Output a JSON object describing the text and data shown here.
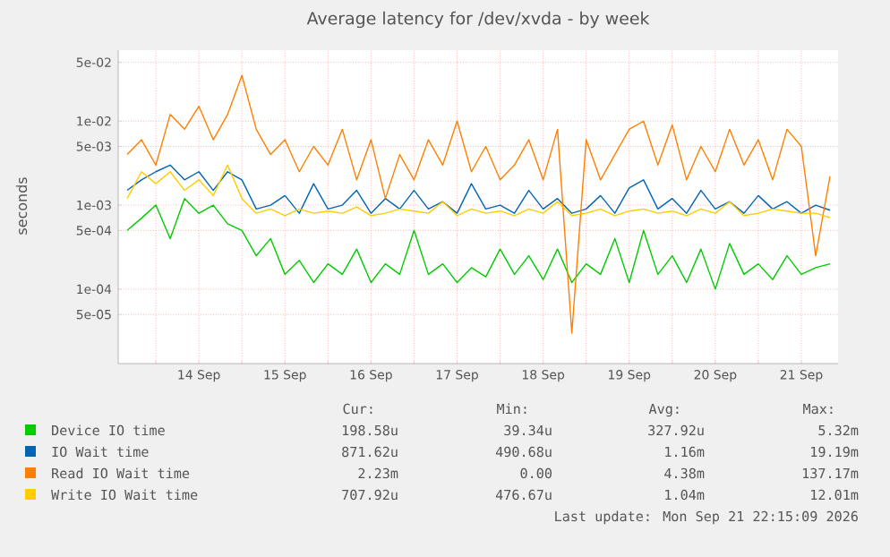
{
  "chart_data": {
    "type": "line",
    "title": "Average latency for /dev/xvda - by week",
    "ylabel": "seconds",
    "log": true,
    "grid": true,
    "legend": "bottom",
    "xlim": [
      "2026-09-13T13:30",
      "2026-09-21T22:15"
    ],
    "ylim": [
      1.3e-05,
      0.07
    ],
    "yticks": [
      {
        "value": 5e-05,
        "label": "5e-05"
      },
      {
        "value": 0.0001,
        "label": "1e-04"
      },
      {
        "value": 0.0005,
        "label": "5e-04"
      },
      {
        "value": 0.001,
        "label": "1e-03"
      },
      {
        "value": 0.005,
        "label": "5e-03"
      },
      {
        "value": 0.01,
        "label": "1e-02"
      },
      {
        "value": 0.05,
        "label": "5e-02"
      }
    ],
    "xticks": [
      {
        "value": "2026-09-14T00:00",
        "label": null
      },
      {
        "value": "2026-09-14T12:00",
        "label": "14 Sep"
      },
      {
        "value": "2026-09-15T00:00",
        "label": null
      },
      {
        "value": "2026-09-15T12:00",
        "label": "15 Sep"
      },
      {
        "value": "2026-09-16T00:00",
        "label": null
      },
      {
        "value": "2026-09-16T12:00",
        "label": "16 Sep"
      },
      {
        "value": "2026-09-17T00:00",
        "label": null
      },
      {
        "value": "2026-09-17T12:00",
        "label": "17 Sep"
      },
      {
        "value": "2026-09-18T00:00",
        "label": null
      },
      {
        "value": "2026-09-18T12:00",
        "label": "18 Sep"
      },
      {
        "value": "2026-09-19T00:00",
        "label": null
      },
      {
        "value": "2026-09-19T12:00",
        "label": "19 Sep"
      },
      {
        "value": "2026-09-20T00:00",
        "label": null
      },
      {
        "value": "2026-09-20T12:00",
        "label": "20 Sep"
      },
      {
        "value": "2026-09-21T00:00",
        "label": null
      },
      {
        "value": "2026-09-21T12:00",
        "label": "21 Sep"
      }
    ],
    "x": [
      "2026-09-13T16:00",
      "2026-09-13T20:00",
      "2026-09-14T00:00",
      "2026-09-14T04:00",
      "2026-09-14T08:00",
      "2026-09-14T12:00",
      "2026-09-14T16:00",
      "2026-09-14T20:00",
      "2026-09-15T00:00",
      "2026-09-15T04:00",
      "2026-09-15T08:00",
      "2026-09-15T12:00",
      "2026-09-15T16:00",
      "2026-09-15T20:00",
      "2026-09-16T00:00",
      "2026-09-16T04:00",
      "2026-09-16T08:00",
      "2026-09-16T12:00",
      "2026-09-16T16:00",
      "2026-09-16T20:00",
      "2026-09-17T00:00",
      "2026-09-17T04:00",
      "2026-09-17T08:00",
      "2026-09-17T12:00",
      "2026-09-17T16:00",
      "2026-09-17T20:00",
      "2026-09-18T00:00",
      "2026-09-18T04:00",
      "2026-09-18T08:00",
      "2026-09-18T12:00",
      "2026-09-18T16:00",
      "2026-09-18T20:00",
      "2026-09-19T00:00",
      "2026-09-19T04:00",
      "2026-09-19T08:00",
      "2026-09-19T12:00",
      "2026-09-19T16:00",
      "2026-09-19T20:00",
      "2026-09-20T00:00",
      "2026-09-20T04:00",
      "2026-09-20T08:00",
      "2026-09-20T12:00",
      "2026-09-20T16:00",
      "2026-09-20T20:00",
      "2026-09-21T00:00",
      "2026-09-21T04:00",
      "2026-09-21T08:00",
      "2026-09-21T12:00",
      "2026-09-21T16:00",
      "2026-09-21T20:00"
    ],
    "series": [
      {
        "name": "Device IO time",
        "color": "#00cc00",
        "values": [
          0.0005,
          0.0007,
          0.001,
          0.0004,
          0.0012,
          0.0008,
          0.001,
          0.0006,
          0.0005,
          0.00025,
          0.0004,
          0.00015,
          0.00022,
          0.00012,
          0.0002,
          0.00015,
          0.0003,
          0.00012,
          0.0002,
          0.00015,
          0.0005,
          0.00015,
          0.0002,
          0.00012,
          0.00018,
          0.00014,
          0.0003,
          0.00015,
          0.00025,
          0.00013,
          0.0003,
          0.00012,
          0.0002,
          0.00015,
          0.0004,
          0.00012,
          0.0005,
          0.00015,
          0.00025,
          0.00012,
          0.0003,
          0.0001,
          0.00035,
          0.00015,
          0.0002,
          0.00013,
          0.00025,
          0.00015,
          0.00018,
          0.0002
        ]
      },
      {
        "name": "IO Wait time",
        "color": "#0066b3",
        "values": [
          0.0015,
          0.002,
          0.0025,
          0.003,
          0.002,
          0.0025,
          0.0015,
          0.0025,
          0.002,
          0.0009,
          0.001,
          0.0013,
          0.0008,
          0.0018,
          0.0009,
          0.001,
          0.0015,
          0.0008,
          0.0012,
          0.0009,
          0.0015,
          0.0009,
          0.0011,
          0.0008,
          0.0018,
          0.0009,
          0.001,
          0.0008,
          0.0015,
          0.0009,
          0.0012,
          0.0008,
          0.0009,
          0.0013,
          0.0008,
          0.0016,
          0.002,
          0.0009,
          0.0012,
          0.0008,
          0.0015,
          0.0009,
          0.0011,
          0.0008,
          0.0013,
          0.0009,
          0.0011,
          0.0008,
          0.001,
          0.00087
        ]
      },
      {
        "name": "Read IO Wait time",
        "color": "#ff8000",
        "values": [
          0.004,
          0.006,
          0.003,
          0.012,
          0.008,
          0.015,
          0.006,
          0.012,
          0.035,
          0.008,
          0.004,
          0.006,
          0.0025,
          0.005,
          0.003,
          0.008,
          0.002,
          0.006,
          0.0012,
          0.004,
          0.002,
          0.006,
          0.003,
          0.01,
          0.0025,
          0.005,
          0.002,
          0.003,
          0.006,
          0.002,
          0.008,
          3e-05,
          0.006,
          0.002,
          0.004,
          0.008,
          0.01,
          0.003,
          0.009,
          0.002,
          0.005,
          0.0025,
          0.008,
          0.003,
          0.006,
          0.002,
          0.008,
          0.005,
          0.00025,
          0.0022
        ]
      },
      {
        "name": "Write IO Wait time",
        "color": "#ffcc00",
        "values": [
          0.0012,
          0.0025,
          0.0018,
          0.0025,
          0.0015,
          0.002,
          0.0013,
          0.003,
          0.0012,
          0.0008,
          0.0009,
          0.00075,
          0.0009,
          0.0008,
          0.00085,
          0.0008,
          0.00095,
          0.00075,
          0.0008,
          0.0009,
          0.00085,
          0.0008,
          0.0011,
          0.00075,
          0.0009,
          0.0008,
          0.00085,
          0.00075,
          0.0009,
          0.0008,
          0.0011,
          0.00075,
          0.0008,
          0.0009,
          0.00075,
          0.00085,
          0.0009,
          0.0008,
          0.00085,
          0.00075,
          0.0009,
          0.0008,
          0.0011,
          0.00075,
          0.0008,
          0.0009,
          0.00085,
          0.0008,
          0.0008,
          0.00071
        ]
      }
    ],
    "annotations": [
      "Cur:",
      "Min:",
      "Avg:",
      "Max:",
      "198.58u",
      "39.34u",
      "327.92u",
      "5.32m",
      "871.62u",
      "490.68u",
      "1.16m",
      "19.19m",
      "2.23m",
      "0.00",
      "4.38m",
      "137.17m",
      "707.92u",
      "476.67u",
      "1.04m",
      "12.01m",
      "Last update: Mon Sep 21 22:15:09 2026"
    ]
  }
}
